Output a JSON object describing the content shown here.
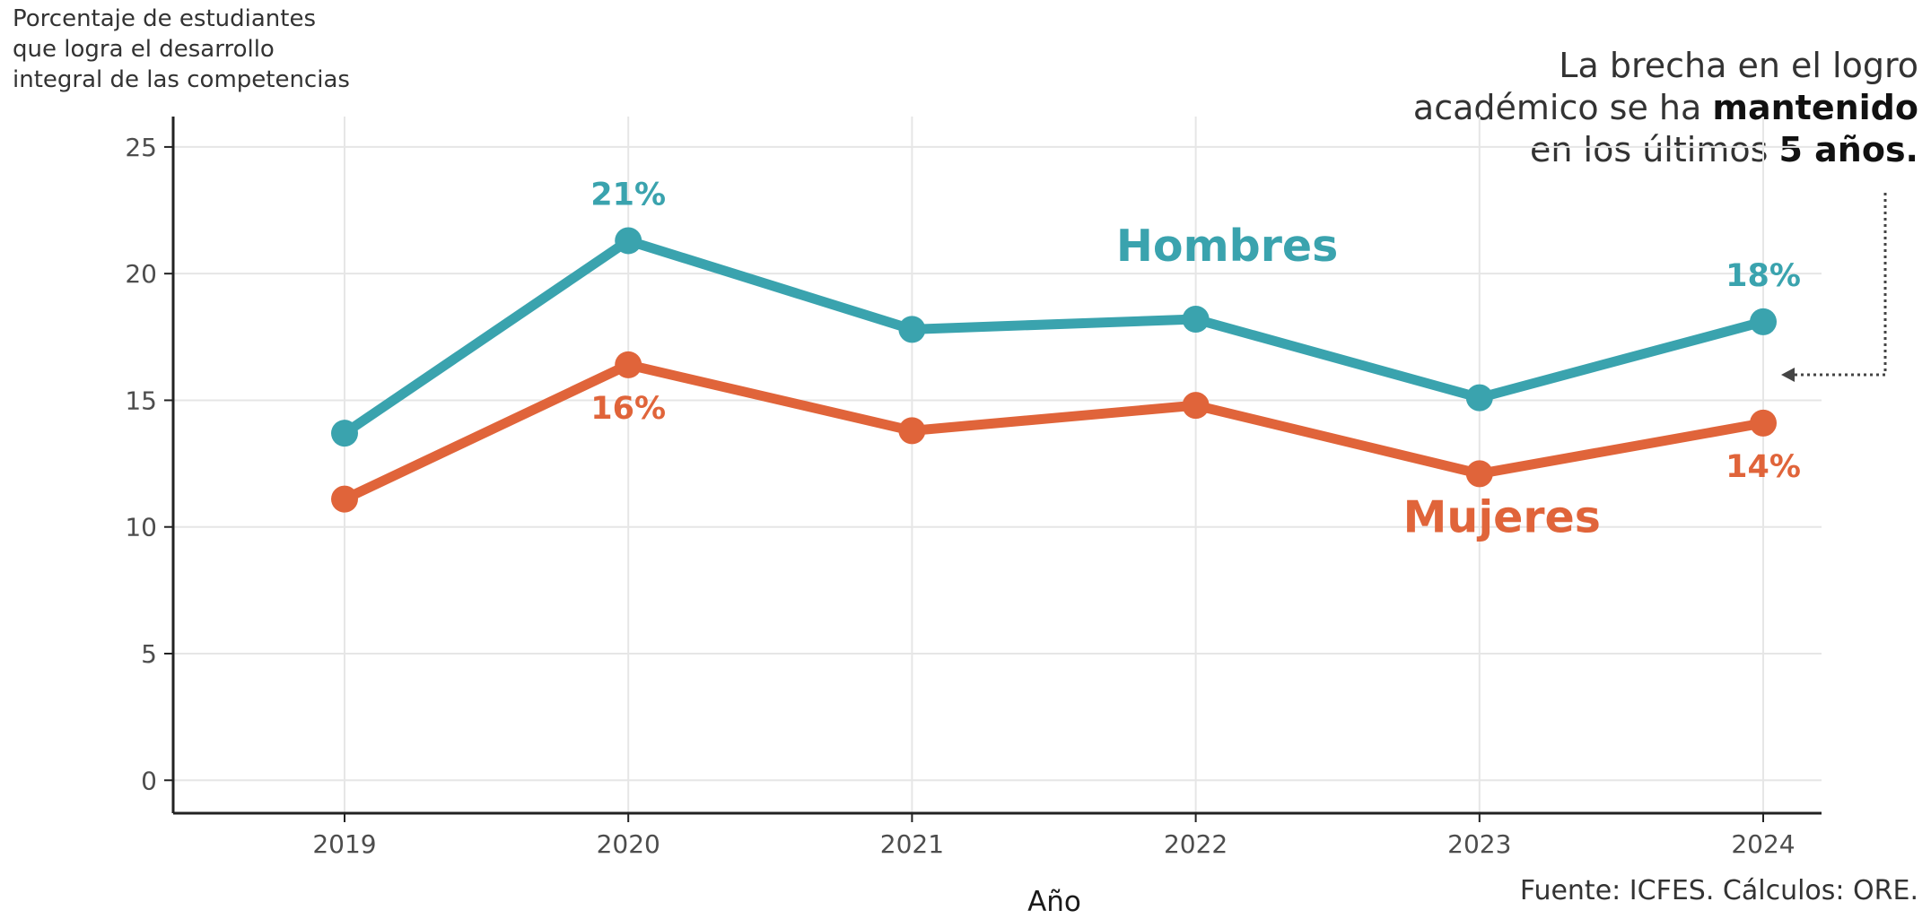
{
  "ylabel_lines": [
    "Porcentaje de estudiantes",
    "que logra el desarrollo",
    "integral de las competencias"
  ],
  "annotation": {
    "line1": "La brecha en el logro",
    "line2_pre": "académico se ha ",
    "line2_bold": "mantenido",
    "line3_pre": "en los últimos ",
    "line3_bold": "5 años."
  },
  "source": "Fuente: ICFES. Cálculos: ORE.",
  "colors": {
    "hombres": "#3aa3ae",
    "mujeres": "#e0643a",
    "grid": "#e6e6e6",
    "axis": "#222222"
  },
  "chart_data": {
    "type": "line",
    "categories": [
      "2019",
      "2020",
      "2021",
      "2022",
      "2023",
      "2024"
    ],
    "xlabel": "Año",
    "ylabel": "Porcentaje de estudiantes que logra el desarrollo integral de las competencias",
    "ylim": [
      -1.3,
      26.2
    ],
    "yticks": [
      0,
      5,
      10,
      15,
      20,
      25
    ],
    "grid": true,
    "series": [
      {
        "name": "Hombres",
        "key": "hombres",
        "values": [
          13.7,
          21.3,
          17.8,
          18.2,
          15.1,
          18.1
        ]
      },
      {
        "name": "Mujeres",
        "key": "mujeres",
        "values": [
          11.1,
          16.4,
          13.8,
          14.8,
          12.1,
          14.1
        ]
      }
    ],
    "data_labels": [
      {
        "series": "hombres",
        "index": 1,
        "text": "21%",
        "pos": "above"
      },
      {
        "series": "hombres",
        "index": 5,
        "text": "18%",
        "pos": "above"
      },
      {
        "series": "mujeres",
        "index": 1,
        "text": "16%",
        "pos": "below"
      },
      {
        "series": "mujeres",
        "index": 5,
        "text": "14%",
        "pos": "below"
      }
    ]
  }
}
